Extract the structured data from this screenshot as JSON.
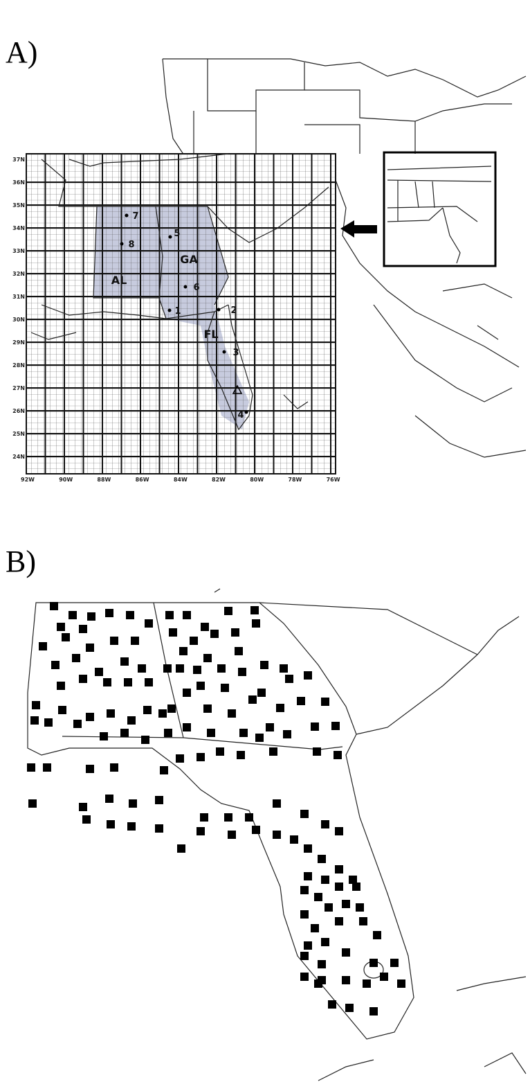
{
  "panel_a": {
    "label": "A)",
    "lat_labels": [
      "37N",
      "36N",
      "35N",
      "34N",
      "33N",
      "32N",
      "31N",
      "30N",
      "29N",
      "28N",
      "27N",
      "26N",
      "25N",
      "24N"
    ],
    "lon_labels": [
      "92W",
      "90W",
      "88W",
      "86W",
      "84W",
      "82W",
      "80W",
      "78W",
      "76W"
    ],
    "states": [
      "AL",
      "GA",
      "FL"
    ],
    "stations": [
      "1",
      "2",
      "3",
      "4",
      "5",
      "6",
      "7",
      "8"
    ]
  },
  "panel_b": {
    "label": "B)"
  }
}
